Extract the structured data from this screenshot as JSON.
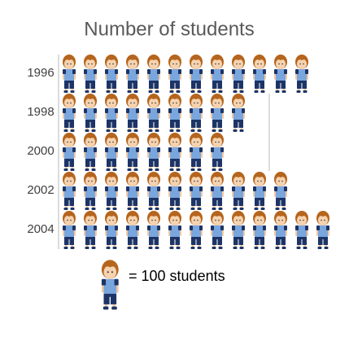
{
  "chart_data": {
    "type": "pictograph",
    "title": "Number of students",
    "categories": [
      "1996",
      "1998",
      "2000",
      "2002",
      "2004"
    ],
    "values": [
      1200,
      900,
      800,
      1100,
      1300
    ],
    "icon_value": 100,
    "legend_label": "= 100 students"
  }
}
